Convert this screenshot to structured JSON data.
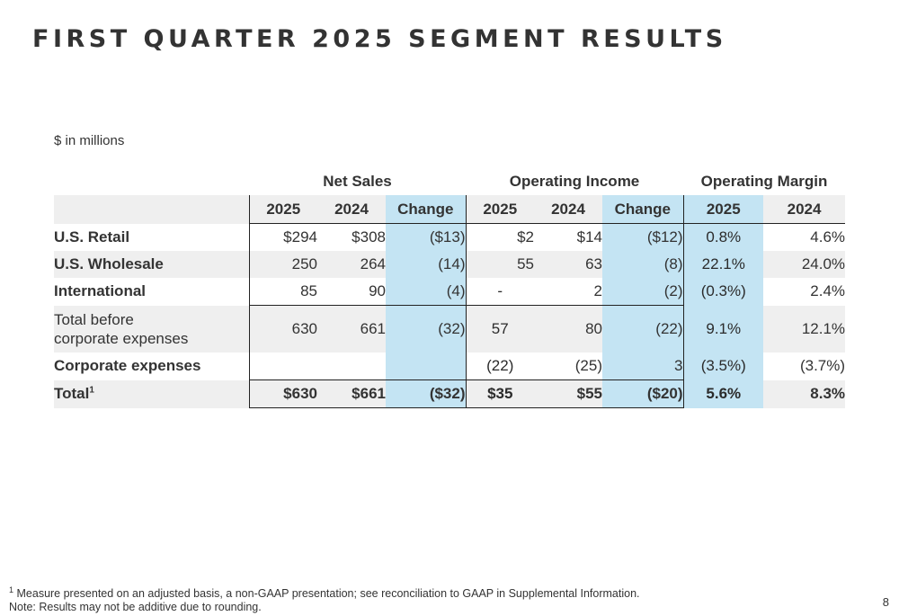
{
  "title": "FIRST QUARTER 2025 SEGMENT RESULTS",
  "units": "$ in millions",
  "groups": {
    "net_sales": "Net Sales",
    "operating_income": "Operating Income",
    "operating_margin": "Operating Margin"
  },
  "columns": [
    "2025",
    "2024",
    "Change",
    "2025",
    "2024",
    "Change",
    "2025",
    "2024"
  ],
  "rows": [
    {
      "label": "U.S. Retail",
      "values": [
        "$294",
        "$308",
        "($13)",
        "$2",
        "$14",
        "($12)",
        "0.8%",
        "4.6%"
      ]
    },
    {
      "label": "U.S. Wholesale",
      "values": [
        "250",
        "264",
        "(14)",
        "55",
        "63",
        "(8)",
        "22.1%",
        "24.0%"
      ]
    },
    {
      "label": "International",
      "values": [
        "85",
        "90",
        "(4)",
        "-",
        "2",
        "(2)",
        "(0.3%)",
        "2.4%"
      ]
    },
    {
      "label_line1": "Total before",
      "label_line2": "corporate expenses",
      "values": [
        "630",
        "661",
        "(32)",
        "57",
        "80",
        "(22)",
        "9.1%",
        "12.1%"
      ]
    },
    {
      "label": "Corporate expenses",
      "values": [
        "",
        "",
        "",
        "(22)",
        "(25)",
        "3",
        "(3.5%)",
        "(3.7%)"
      ]
    },
    {
      "label": "Total",
      "label_sup": "1",
      "values": [
        "$630",
        "$661",
        "($32)",
        "$35",
        "$55",
        "($20)",
        "5.6%",
        "8.3%"
      ]
    }
  ],
  "footnote_1_sup": "1",
  "footnote_1": "Measure presented on an adjusted basis, a non-GAAP presentation; see reconciliation to GAAP in Supplemental Information.",
  "footnote_2": "Note: Results may not be additive due to rounding.",
  "page_number": "8",
  "colors": {
    "change_column": "#c4e4f3",
    "stripe": "#efefef",
    "rule": "#222222"
  }
}
